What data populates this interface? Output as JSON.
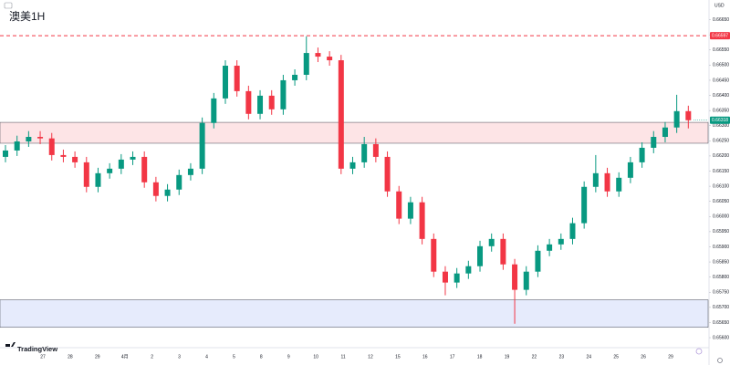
{
  "chart_data": {
    "type": "candlestick",
    "title": "澳美1H",
    "currency": "USD",
    "brand": "TradingView",
    "grid": false,
    "up_color": "#089981",
    "down_color": "#f23645",
    "open": [
      0.66197,
      0.66218,
      0.66248,
      0.66263,
      0.66258,
      0.66203,
      0.66197,
      0.66179,
      0.66098,
      0.66143,
      0.66158,
      0.66188,
      0.66197,
      0.66113,
      0.66068,
      0.66089,
      0.66137,
      0.66158,
      0.66309,
      0.6639,
      0.66498,
      0.66414,
      0.66339,
      0.66399,
      0.66354,
      0.6645,
      0.66468,
      0.6654,
      0.66528,
      0.66516,
      0.66158,
      0.66179,
      0.66239,
      0.66197,
      0.66083,
      0.65993,
      0.66047,
      0.65926,
      0.65818,
      0.65782,
      0.65812,
      0.65836,
      0.65902,
      0.65926,
      0.65842,
      0.65758,
      0.65818,
      0.65887,
      0.65908,
      0.65926,
      0.65978,
      0.66098,
      0.66143,
      0.66083,
      0.66128,
      0.66179,
      0.66227,
      0.66263,
      0.66294,
      0.66348
    ],
    "high": [
      0.66236,
      0.66267,
      0.66282,
      0.66282,
      0.66276,
      0.66221,
      0.66215,
      0.66197,
      0.66161,
      0.66176,
      0.66206,
      0.66215,
      0.66215,
      0.66131,
      0.66107,
      0.66155,
      0.66176,
      0.66327,
      0.66408,
      0.66516,
      0.66516,
      0.66432,
      0.66417,
      0.66417,
      0.66468,
      0.66486,
      0.66595,
      0.66558,
      0.66546,
      0.66534,
      0.66197,
      0.66263,
      0.66258,
      0.66215,
      0.66101,
      0.66065,
      0.66065,
      0.65944,
      0.65836,
      0.6583,
      0.65854,
      0.6592,
      0.65944,
      0.65944,
      0.6586,
      0.65836,
      0.65905,
      0.65926,
      0.65944,
      0.65996,
      0.66116,
      0.66203,
      0.66161,
      0.66146,
      0.66197,
      0.66245,
      0.66282,
      0.66312,
      0.66402,
      0.66366
    ],
    "low": [
      0.66179,
      0.662,
      0.6623,
      0.66239,
      0.66185,
      0.66179,
      0.66161,
      0.6608,
      0.6608,
      0.66125,
      0.6614,
      0.6617,
      0.66095,
      0.6605,
      0.6605,
      0.66071,
      0.66119,
      0.6614,
      0.66291,
      0.66372,
      0.66396,
      0.66321,
      0.66321,
      0.66336,
      0.66336,
      0.66432,
      0.6645,
      0.6651,
      0.66498,
      0.6614,
      0.6614,
      0.66161,
      0.66179,
      0.66065,
      0.65975,
      0.65975,
      0.65908,
      0.658,
      0.6574,
      0.65764,
      0.65794,
      0.65818,
      0.65884,
      0.65824,
      0.65646,
      0.6574,
      0.658,
      0.65869,
      0.6589,
      0.65908,
      0.6596,
      0.6608,
      0.66065,
      0.66065,
      0.6611,
      0.66161,
      0.66209,
      0.66245,
      0.66276,
      0.66291
    ],
    "close": [
      0.66218,
      0.66248,
      0.66263,
      0.66258,
      0.66203,
      0.66197,
      0.66179,
      0.66098,
      0.66143,
      0.66158,
      0.66188,
      0.66197,
      0.66113,
      0.66068,
      0.66089,
      0.66137,
      0.66158,
      0.66309,
      0.6639,
      0.66498,
      0.66414,
      0.66339,
      0.66399,
      0.66354,
      0.6645,
      0.66468,
      0.6654,
      0.66528,
      0.66516,
      0.66158,
      0.66179,
      0.66239,
      0.66197,
      0.66083,
      0.65993,
      0.66047,
      0.65926,
      0.65818,
      0.65782,
      0.65812,
      0.65836,
      0.65902,
      0.65926,
      0.65842,
      0.65758,
      0.65818,
      0.65887,
      0.65908,
      0.65926,
      0.65978,
      0.66098,
      0.66143,
      0.66083,
      0.66128,
      0.66179,
      0.66227,
      0.66263,
      0.66294,
      0.66348,
      0.66318
    ],
    "ylim": [
      0.6557,
      0.66715
    ],
    "yticks": [
      {
        "value": 0.656,
        "label": "0.65600"
      },
      {
        "value": 0.6565,
        "label": "0.65650"
      },
      {
        "value": 0.657,
        "label": "0.65700"
      },
      {
        "value": 0.6575,
        "label": "0.65750"
      },
      {
        "value": 0.658,
        "label": "0.65800"
      },
      {
        "value": 0.6585,
        "label": "0.65850"
      },
      {
        "value": 0.659,
        "label": "0.65900"
      },
      {
        "value": 0.6595,
        "label": "0.65950"
      },
      {
        "value": 0.66,
        "label": "0.66000"
      },
      {
        "value": 0.6605,
        "label": "0.66050"
      },
      {
        "value": 0.661,
        "label": "0.66100"
      },
      {
        "value": 0.6615,
        "label": "0.66150"
      },
      {
        "value": 0.662,
        "label": "0.66200"
      },
      {
        "value": 0.6625,
        "label": "0.66250"
      },
      {
        "value": 0.663,
        "label": "0.66300"
      },
      {
        "value": 0.6635,
        "label": "0.66350"
      },
      {
        "value": 0.664,
        "label": "0.66400"
      },
      {
        "value": 0.6645,
        "label": "0.66450"
      },
      {
        "value": 0.665,
        "label": "0.66500"
      },
      {
        "value": 0.6655,
        "label": "0.66550"
      },
      {
        "value": 0.666,
        "label": "0.66600"
      },
      {
        "value": 0.6665,
        "label": "0.66650"
      }
    ],
    "xtick_labels": [
      "27",
      "28",
      "29",
      "4月",
      "2",
      "3",
      "4",
      "5",
      "8",
      "9",
      "10",
      "11",
      "12",
      "15",
      "16",
      "17",
      "18",
      "19",
      "22",
      "23",
      "24",
      "25",
      "26",
      "29"
    ],
    "zones": [
      {
        "low": 0.66242,
        "high": 0.66311,
        "color": "#fde4e6"
      },
      {
        "low": 0.65634,
        "high": 0.65725,
        "color": "#e6ebfc"
      }
    ],
    "hline": {
      "value": 0.66597,
      "label": "0.66597",
      "color": "#f23645"
    },
    "last_price": {
      "value": 0.66318,
      "label": "0.66318",
      "color": "#089981"
    }
  }
}
